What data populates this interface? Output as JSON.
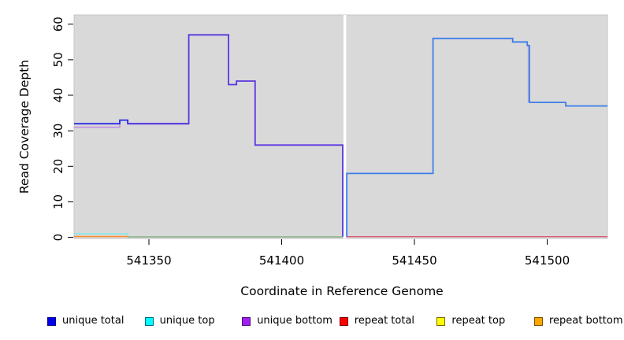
{
  "chart_data": {
    "type": "line",
    "title": "",
    "xlabel": "Coordinate in Reference Genome",
    "ylabel": "Read Coverage Depth",
    "x_domain": [
      541321.8,
      541522.7
    ],
    "y_domain": [
      -0.3,
      62.6
    ],
    "x_ticks": [
      541350,
      541400,
      541450,
      541500
    ],
    "y_ticks": [
      0,
      10,
      20,
      30,
      40,
      50,
      60
    ],
    "plot_bg": "#d9d9d9",
    "plot_border": "#c6c6c6",
    "gap_band": {
      "x0": 541423.3,
      "x1": 541424.3,
      "color": "#ffffff",
      "after_series": 6
    },
    "series": [
      {
        "name": "unique-bottom-left",
        "color": "#c48fe0",
        "width": 1.6,
        "points": [
          [
            541321.8,
            31
          ],
          [
            541339,
            31
          ],
          [
            541339,
            32
          ]
        ]
      },
      {
        "name": "unique-total-left",
        "color": "#2a2ae6",
        "width": 1.8,
        "points": [
          [
            541321.8,
            32
          ],
          [
            541339,
            32
          ],
          [
            541339,
            33
          ],
          [
            541342,
            33
          ],
          [
            541342,
            32
          ],
          [
            541365,
            32
          ]
        ]
      },
      {
        "name": "unique-total-bottom-peak",
        "color": "#5a35e0",
        "width": 1.8,
        "points": [
          [
            541342,
            32
          ],
          [
            541365,
            32
          ],
          [
            541365,
            57
          ],
          [
            541380,
            57
          ],
          [
            541380,
            43
          ],
          [
            541383,
            43
          ],
          [
            541383,
            44
          ],
          [
            541390,
            44
          ],
          [
            541390,
            26
          ],
          [
            541423,
            26
          ],
          [
            541423,
            0.2
          ]
        ]
      },
      {
        "name": "unique-top-left",
        "color": "#86e8e4",
        "width": 1.6,
        "points": [
          [
            541321.8,
            1
          ],
          [
            541342,
            1
          ],
          [
            541342,
            0.25
          ]
        ]
      },
      {
        "name": "repeat-bottom-left",
        "color": "#ff8c2a",
        "width": 1.6,
        "points": [
          [
            541321.8,
            0.25
          ],
          [
            541342,
            0.25
          ]
        ]
      },
      {
        "name": "baseline-left-green",
        "color": "#84b284",
        "width": 1.4,
        "points": [
          [
            541342,
            0.15
          ],
          [
            541423,
            0.15
          ]
        ]
      },
      {
        "name": "unique-bottom-right-drop",
        "color": "#b9a6e0",
        "width": 1.5,
        "points": [
          [
            541492.9,
            54
          ],
          [
            541492.9,
            38
          ]
        ]
      },
      {
        "name": "repeat-total-right",
        "color": "#d85a72",
        "width": 1.4,
        "points": [
          [
            541424.3,
            0.2
          ],
          [
            541522.7,
            0.2
          ]
        ]
      },
      {
        "name": "unique-total-right",
        "color": "#3e7ee8",
        "width": 1.8,
        "points": [
          [
            541424.5,
            0.2
          ],
          [
            541424.5,
            18
          ],
          [
            541457,
            18
          ],
          [
            541457,
            56
          ],
          [
            541487,
            56
          ],
          [
            541487,
            55
          ],
          [
            541492.5,
            55
          ],
          [
            541492.5,
            54
          ],
          [
            541493.3,
            54
          ],
          [
            541493.3,
            38
          ],
          [
            541507,
            38
          ],
          [
            541507,
            37
          ],
          [
            541522.7,
            37
          ]
        ]
      }
    ],
    "legend": [
      {
        "label": "unique total",
        "color": "#0000ee",
        "border": "#000080"
      },
      {
        "label": "unique top",
        "color": "#00ffff",
        "border": "#00668a"
      },
      {
        "label": "unique bottom",
        "color": "#a020f0",
        "border": "#4b0d75"
      },
      {
        "label": "repeat total",
        "color": "#ff0000",
        "border": "#7a0000"
      },
      {
        "label": "repeat top",
        "color": "#ffff00",
        "border": "#7a6a00"
      },
      {
        "label": "repeat bottom",
        "color": "#ffa500",
        "border": "#7a4f00"
      }
    ]
  }
}
